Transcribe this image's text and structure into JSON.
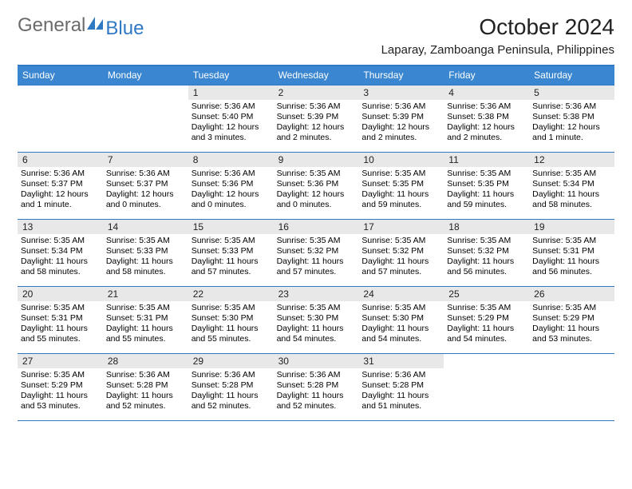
{
  "logo": {
    "part1": "General",
    "part2": "Blue"
  },
  "title": "October 2024",
  "location": "Laparay, Zamboanga Peninsula, Philippines",
  "colors": {
    "header_bg": "#3a86d0",
    "header_border": "#2f78c4",
    "daynum_bg": "#e8e8e8",
    "logo_gray": "#6b6b6b",
    "logo_blue": "#2f78c4",
    "text": "#000000",
    "background": "#ffffff"
  },
  "days_of_week": [
    "Sunday",
    "Monday",
    "Tuesday",
    "Wednesday",
    "Thursday",
    "Friday",
    "Saturday"
  ],
  "weeks": [
    [
      null,
      null,
      {
        "n": "1",
        "sr": "Sunrise: 5:36 AM",
        "ss": "Sunset: 5:40 PM",
        "dl": "Daylight: 12 hours and 3 minutes."
      },
      {
        "n": "2",
        "sr": "Sunrise: 5:36 AM",
        "ss": "Sunset: 5:39 PM",
        "dl": "Daylight: 12 hours and 2 minutes."
      },
      {
        "n": "3",
        "sr": "Sunrise: 5:36 AM",
        "ss": "Sunset: 5:39 PM",
        "dl": "Daylight: 12 hours and 2 minutes."
      },
      {
        "n": "4",
        "sr": "Sunrise: 5:36 AM",
        "ss": "Sunset: 5:38 PM",
        "dl": "Daylight: 12 hours and 2 minutes."
      },
      {
        "n": "5",
        "sr": "Sunrise: 5:36 AM",
        "ss": "Sunset: 5:38 PM",
        "dl": "Daylight: 12 hours and 1 minute."
      }
    ],
    [
      {
        "n": "6",
        "sr": "Sunrise: 5:36 AM",
        "ss": "Sunset: 5:37 PM",
        "dl": "Daylight: 12 hours and 1 minute."
      },
      {
        "n": "7",
        "sr": "Sunrise: 5:36 AM",
        "ss": "Sunset: 5:37 PM",
        "dl": "Daylight: 12 hours and 0 minutes."
      },
      {
        "n": "8",
        "sr": "Sunrise: 5:36 AM",
        "ss": "Sunset: 5:36 PM",
        "dl": "Daylight: 12 hours and 0 minutes."
      },
      {
        "n": "9",
        "sr": "Sunrise: 5:35 AM",
        "ss": "Sunset: 5:36 PM",
        "dl": "Daylight: 12 hours and 0 minutes."
      },
      {
        "n": "10",
        "sr": "Sunrise: 5:35 AM",
        "ss": "Sunset: 5:35 PM",
        "dl": "Daylight: 11 hours and 59 minutes."
      },
      {
        "n": "11",
        "sr": "Sunrise: 5:35 AM",
        "ss": "Sunset: 5:35 PM",
        "dl": "Daylight: 11 hours and 59 minutes."
      },
      {
        "n": "12",
        "sr": "Sunrise: 5:35 AM",
        "ss": "Sunset: 5:34 PM",
        "dl": "Daylight: 11 hours and 58 minutes."
      }
    ],
    [
      {
        "n": "13",
        "sr": "Sunrise: 5:35 AM",
        "ss": "Sunset: 5:34 PM",
        "dl": "Daylight: 11 hours and 58 minutes."
      },
      {
        "n": "14",
        "sr": "Sunrise: 5:35 AM",
        "ss": "Sunset: 5:33 PM",
        "dl": "Daylight: 11 hours and 58 minutes."
      },
      {
        "n": "15",
        "sr": "Sunrise: 5:35 AM",
        "ss": "Sunset: 5:33 PM",
        "dl": "Daylight: 11 hours and 57 minutes."
      },
      {
        "n": "16",
        "sr": "Sunrise: 5:35 AM",
        "ss": "Sunset: 5:32 PM",
        "dl": "Daylight: 11 hours and 57 minutes."
      },
      {
        "n": "17",
        "sr": "Sunrise: 5:35 AM",
        "ss": "Sunset: 5:32 PM",
        "dl": "Daylight: 11 hours and 57 minutes."
      },
      {
        "n": "18",
        "sr": "Sunrise: 5:35 AM",
        "ss": "Sunset: 5:32 PM",
        "dl": "Daylight: 11 hours and 56 minutes."
      },
      {
        "n": "19",
        "sr": "Sunrise: 5:35 AM",
        "ss": "Sunset: 5:31 PM",
        "dl": "Daylight: 11 hours and 56 minutes."
      }
    ],
    [
      {
        "n": "20",
        "sr": "Sunrise: 5:35 AM",
        "ss": "Sunset: 5:31 PM",
        "dl": "Daylight: 11 hours and 55 minutes."
      },
      {
        "n": "21",
        "sr": "Sunrise: 5:35 AM",
        "ss": "Sunset: 5:31 PM",
        "dl": "Daylight: 11 hours and 55 minutes."
      },
      {
        "n": "22",
        "sr": "Sunrise: 5:35 AM",
        "ss": "Sunset: 5:30 PM",
        "dl": "Daylight: 11 hours and 55 minutes."
      },
      {
        "n": "23",
        "sr": "Sunrise: 5:35 AM",
        "ss": "Sunset: 5:30 PM",
        "dl": "Daylight: 11 hours and 54 minutes."
      },
      {
        "n": "24",
        "sr": "Sunrise: 5:35 AM",
        "ss": "Sunset: 5:30 PM",
        "dl": "Daylight: 11 hours and 54 minutes."
      },
      {
        "n": "25",
        "sr": "Sunrise: 5:35 AM",
        "ss": "Sunset: 5:29 PM",
        "dl": "Daylight: 11 hours and 54 minutes."
      },
      {
        "n": "26",
        "sr": "Sunrise: 5:35 AM",
        "ss": "Sunset: 5:29 PM",
        "dl": "Daylight: 11 hours and 53 minutes."
      }
    ],
    [
      {
        "n": "27",
        "sr": "Sunrise: 5:35 AM",
        "ss": "Sunset: 5:29 PM",
        "dl": "Daylight: 11 hours and 53 minutes."
      },
      {
        "n": "28",
        "sr": "Sunrise: 5:36 AM",
        "ss": "Sunset: 5:28 PM",
        "dl": "Daylight: 11 hours and 52 minutes."
      },
      {
        "n": "29",
        "sr": "Sunrise: 5:36 AM",
        "ss": "Sunset: 5:28 PM",
        "dl": "Daylight: 11 hours and 52 minutes."
      },
      {
        "n": "30",
        "sr": "Sunrise: 5:36 AM",
        "ss": "Sunset: 5:28 PM",
        "dl": "Daylight: 11 hours and 52 minutes."
      },
      {
        "n": "31",
        "sr": "Sunrise: 5:36 AM",
        "ss": "Sunset: 5:28 PM",
        "dl": "Daylight: 11 hours and 51 minutes."
      },
      null,
      null
    ]
  ]
}
